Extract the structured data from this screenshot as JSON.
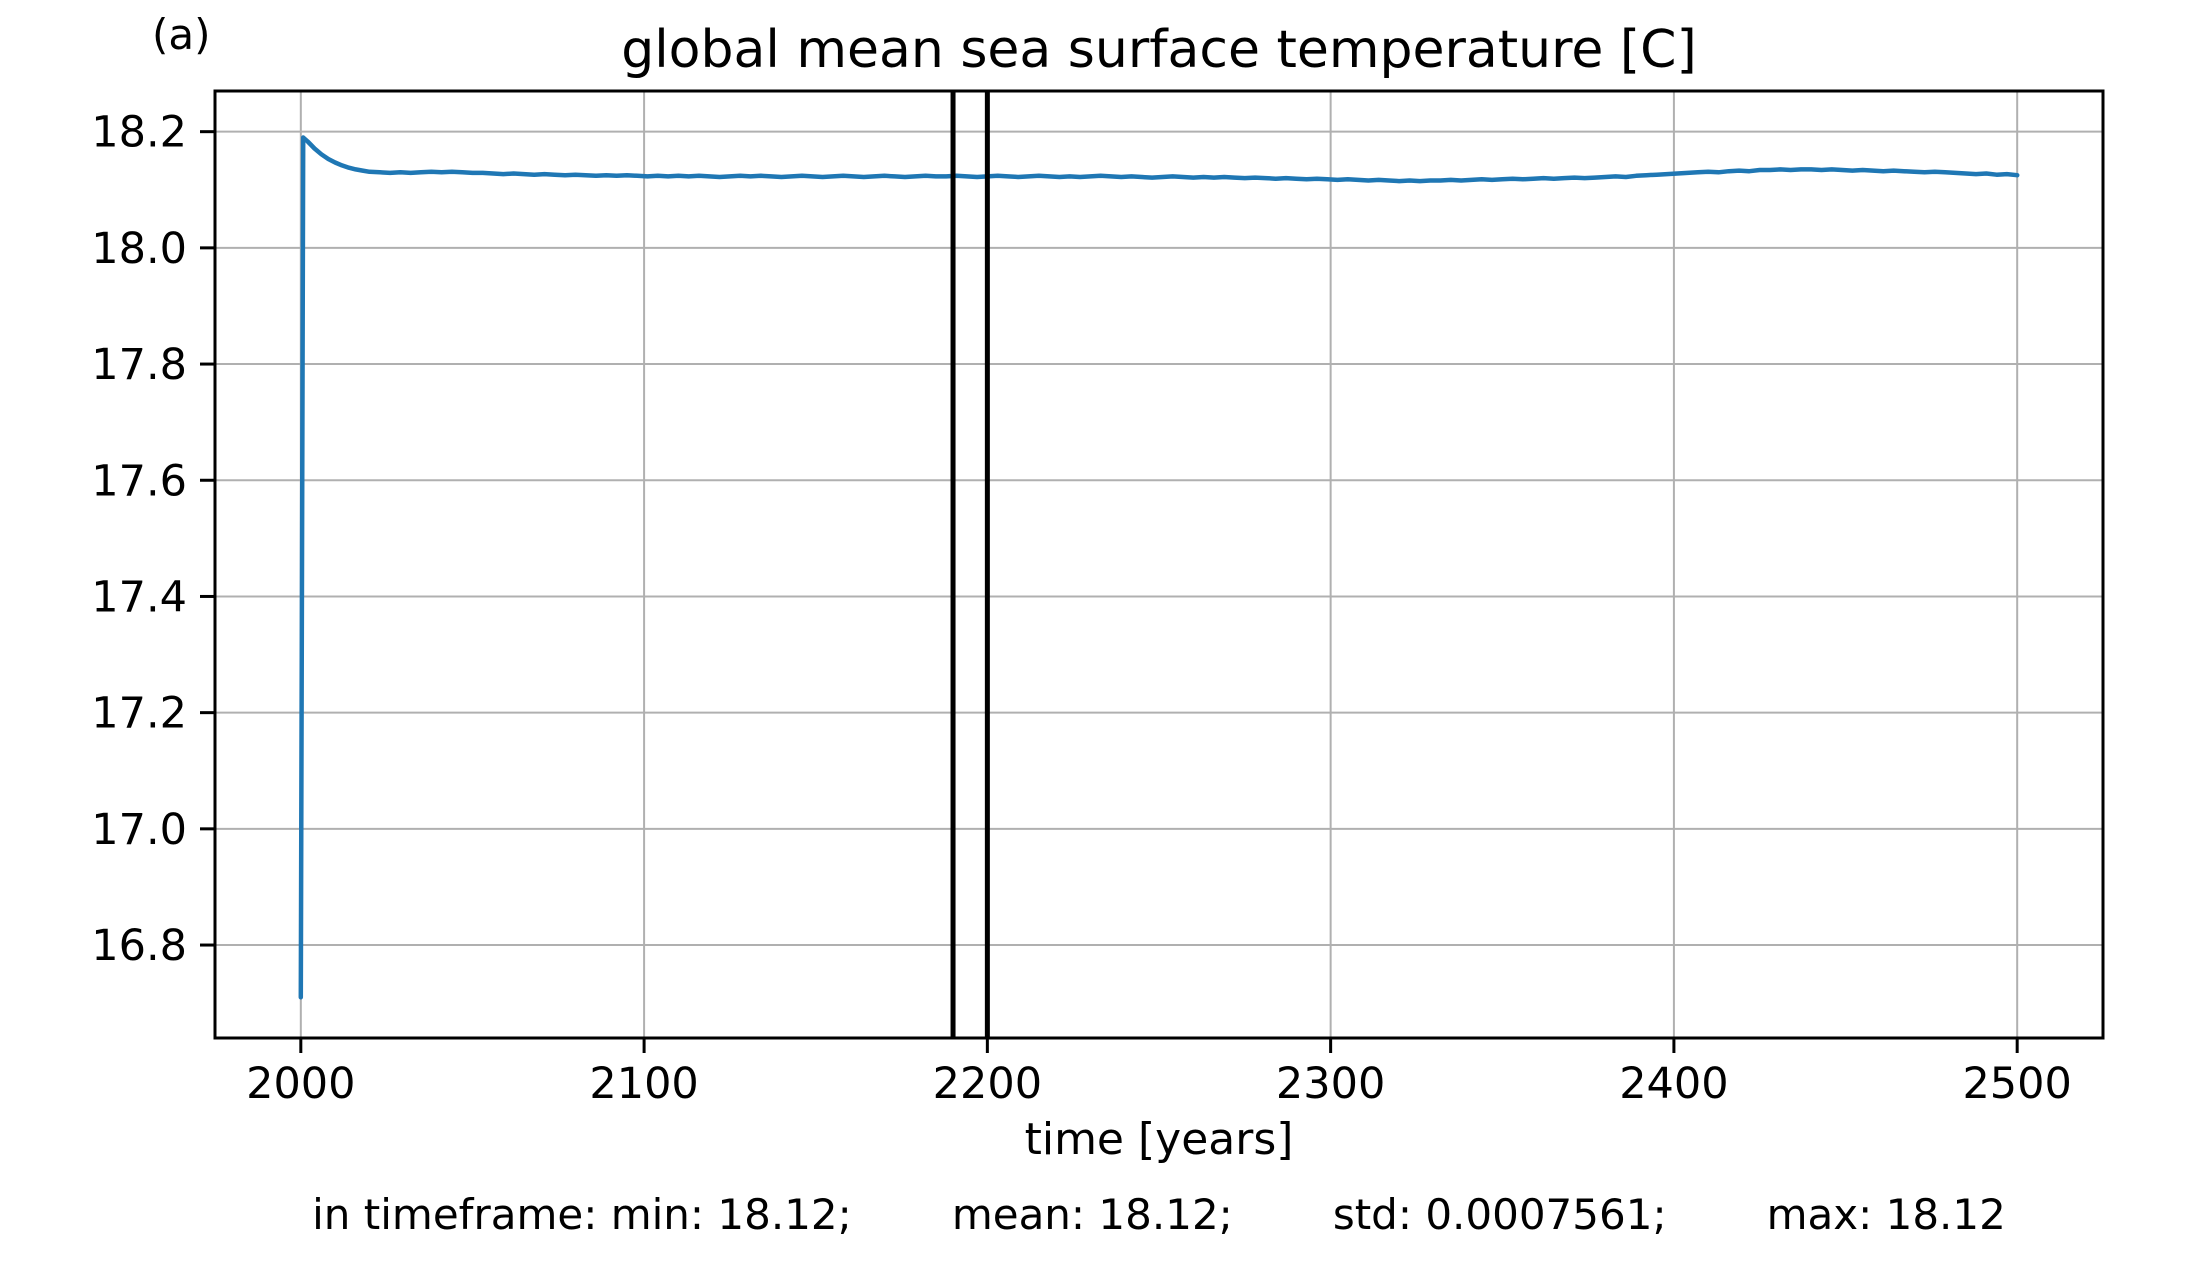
{
  "panel_label": "(a)",
  "title": "global mean sea surface temperature [C]",
  "xlabel": "time [years]",
  "stats": {
    "min_label": "in timeframe: min: 18.12;",
    "mean_label": "mean: 18.12;",
    "std_label": "std: 0.0007561;",
    "max_label": "max: 18.12"
  },
  "colors": {
    "line": "#1f77b4",
    "grid": "#b0b0b0",
    "axis": "#000000",
    "vline": "#000000",
    "text": "#000000",
    "background": "#ffffff"
  },
  "chart_data": {
    "type": "line",
    "title": "global mean sea surface temperature [C]",
    "xlabel": "time [years]",
    "ylabel": "",
    "xlim": [
      1975,
      2525
    ],
    "ylim": [
      16.64,
      18.27
    ],
    "xticks": [
      2000,
      2100,
      2200,
      2300,
      2400,
      2500
    ],
    "yticks": [
      16.8,
      17.0,
      17.2,
      17.4,
      17.6,
      17.8,
      18.0,
      18.2
    ],
    "grid": true,
    "legend": false,
    "vlines": [
      2190,
      2200
    ],
    "timeframe_stats": {
      "min": 18.12,
      "mean": 18.12,
      "std": 0.0007561,
      "max": 18.12
    },
    "series": [
      {
        "name": "global mean sea surface temperature",
        "color": "#1f77b4",
        "points": [
          [
            2000,
            16.71
          ],
          [
            2000.7,
            18.19
          ],
          [
            2002,
            18.183
          ],
          [
            2004,
            18.171
          ],
          [
            2006,
            18.161
          ],
          [
            2008,
            18.153
          ],
          [
            2010,
            18.147
          ],
          [
            2012,
            18.142
          ],
          [
            2014,
            18.138
          ],
          [
            2016,
            18.135
          ],
          [
            2018,
            18.133
          ],
          [
            2020,
            18.131
          ],
          [
            2023,
            18.13
          ],
          [
            2026,
            18.129
          ],
          [
            2029,
            18.13
          ],
          [
            2032,
            18.129
          ],
          [
            2035,
            18.13
          ],
          [
            2038,
            18.131
          ],
          [
            2041,
            18.13
          ],
          [
            2044,
            18.131
          ],
          [
            2047,
            18.13
          ],
          [
            2050,
            18.129
          ],
          [
            2053,
            18.129
          ],
          [
            2056,
            18.128
          ],
          [
            2059,
            18.127
          ],
          [
            2062,
            18.128
          ],
          [
            2065,
            18.127
          ],
          [
            2068,
            18.126
          ],
          [
            2071,
            18.127
          ],
          [
            2074,
            18.126
          ],
          [
            2077,
            18.125
          ],
          [
            2080,
            18.126
          ],
          [
            2083,
            18.125
          ],
          [
            2086,
            18.124
          ],
          [
            2089,
            18.125
          ],
          [
            2092,
            18.124
          ],
          [
            2095,
            18.125
          ],
          [
            2098,
            18.124
          ],
          [
            2101,
            18.123
          ],
          [
            2104,
            18.124
          ],
          [
            2107,
            18.123
          ],
          [
            2110,
            18.124
          ],
          [
            2113,
            18.123
          ],
          [
            2116,
            18.124
          ],
          [
            2119,
            18.123
          ],
          [
            2122,
            18.122
          ],
          [
            2125,
            18.123
          ],
          [
            2128,
            18.124
          ],
          [
            2131,
            18.123
          ],
          [
            2134,
            18.124
          ],
          [
            2137,
            18.123
          ],
          [
            2140,
            18.122
          ],
          [
            2143,
            18.123
          ],
          [
            2146,
            18.124
          ],
          [
            2149,
            18.123
          ],
          [
            2152,
            18.122
          ],
          [
            2155,
            18.123
          ],
          [
            2158,
            18.124
          ],
          [
            2161,
            18.123
          ],
          [
            2164,
            18.122
          ],
          [
            2167,
            18.123
          ],
          [
            2170,
            18.124
          ],
          [
            2173,
            18.123
          ],
          [
            2176,
            18.122
          ],
          [
            2179,
            18.123
          ],
          [
            2182,
            18.124
          ],
          [
            2185,
            18.123
          ],
          [
            2188,
            18.123
          ],
          [
            2191,
            18.124
          ],
          [
            2194,
            18.123
          ],
          [
            2197,
            18.122
          ],
          [
            2200,
            18.123
          ],
          [
            2203,
            18.124
          ],
          [
            2206,
            18.123
          ],
          [
            2209,
            18.122
          ],
          [
            2212,
            18.123
          ],
          [
            2215,
            18.124
          ],
          [
            2218,
            18.123
          ],
          [
            2221,
            18.122
          ],
          [
            2224,
            18.123
          ],
          [
            2227,
            18.122
          ],
          [
            2230,
            18.123
          ],
          [
            2233,
            18.124
          ],
          [
            2236,
            18.123
          ],
          [
            2239,
            18.122
          ],
          [
            2242,
            18.123
          ],
          [
            2245,
            18.122
          ],
          [
            2248,
            18.121
          ],
          [
            2251,
            18.122
          ],
          [
            2254,
            18.123
          ],
          [
            2257,
            18.122
          ],
          [
            2260,
            18.121
          ],
          [
            2263,
            18.122
          ],
          [
            2266,
            18.121
          ],
          [
            2269,
            18.122
          ],
          [
            2272,
            18.121
          ],
          [
            2275,
            18.12
          ],
          [
            2278,
            18.121
          ],
          [
            2281,
            18.12
          ],
          [
            2284,
            18.119
          ],
          [
            2287,
            18.12
          ],
          [
            2290,
            18.119
          ],
          [
            2293,
            18.118
          ],
          [
            2296,
            18.119
          ],
          [
            2299,
            18.118
          ],
          [
            2302,
            18.117
          ],
          [
            2305,
            18.118
          ],
          [
            2308,
            18.117
          ],
          [
            2311,
            18.116
          ],
          [
            2314,
            18.117
          ],
          [
            2317,
            18.116
          ],
          [
            2320,
            18.115
          ],
          [
            2323,
            18.116
          ],
          [
            2326,
            18.115
          ],
          [
            2329,
            18.116
          ],
          [
            2332,
            18.116
          ],
          [
            2335,
            18.117
          ],
          [
            2338,
            18.116
          ],
          [
            2341,
            18.117
          ],
          [
            2344,
            18.118
          ],
          [
            2347,
            18.117
          ],
          [
            2350,
            18.118
          ],
          [
            2353,
            18.119
          ],
          [
            2356,
            18.118
          ],
          [
            2359,
            18.119
          ],
          [
            2362,
            18.12
          ],
          [
            2365,
            18.119
          ],
          [
            2368,
            18.12
          ],
          [
            2371,
            18.121
          ],
          [
            2374,
            18.12
          ],
          [
            2377,
            18.121
          ],
          [
            2380,
            18.122
          ],
          [
            2383,
            18.123
          ],
          [
            2386,
            18.122
          ],
          [
            2389,
            18.124
          ],
          [
            2392,
            18.125
          ],
          [
            2395,
            18.126
          ],
          [
            2398,
            18.127
          ],
          [
            2401,
            18.128
          ],
          [
            2404,
            18.129
          ],
          [
            2407,
            18.13
          ],
          [
            2410,
            18.131
          ],
          [
            2413,
            18.13
          ],
          [
            2416,
            18.132
          ],
          [
            2419,
            18.133
          ],
          [
            2422,
            18.132
          ],
          [
            2425,
            18.134
          ],
          [
            2428,
            18.134
          ],
          [
            2431,
            18.135
          ],
          [
            2434,
            18.134
          ],
          [
            2437,
            18.135
          ],
          [
            2440,
            18.135
          ],
          [
            2443,
            18.134
          ],
          [
            2446,
            18.135
          ],
          [
            2449,
            18.134
          ],
          [
            2452,
            18.133
          ],
          [
            2455,
            18.134
          ],
          [
            2458,
            18.133
          ],
          [
            2461,
            18.132
          ],
          [
            2464,
            18.133
          ],
          [
            2467,
            18.132
          ],
          [
            2470,
            18.131
          ],
          [
            2473,
            18.13
          ],
          [
            2476,
            18.131
          ],
          [
            2479,
            18.13
          ],
          [
            2482,
            18.129
          ],
          [
            2485,
            18.128
          ],
          [
            2488,
            18.127
          ],
          [
            2491,
            18.128
          ],
          [
            2494,
            18.126
          ],
          [
            2497,
            18.127
          ],
          [
            2500,
            18.125
          ]
        ]
      }
    ]
  }
}
